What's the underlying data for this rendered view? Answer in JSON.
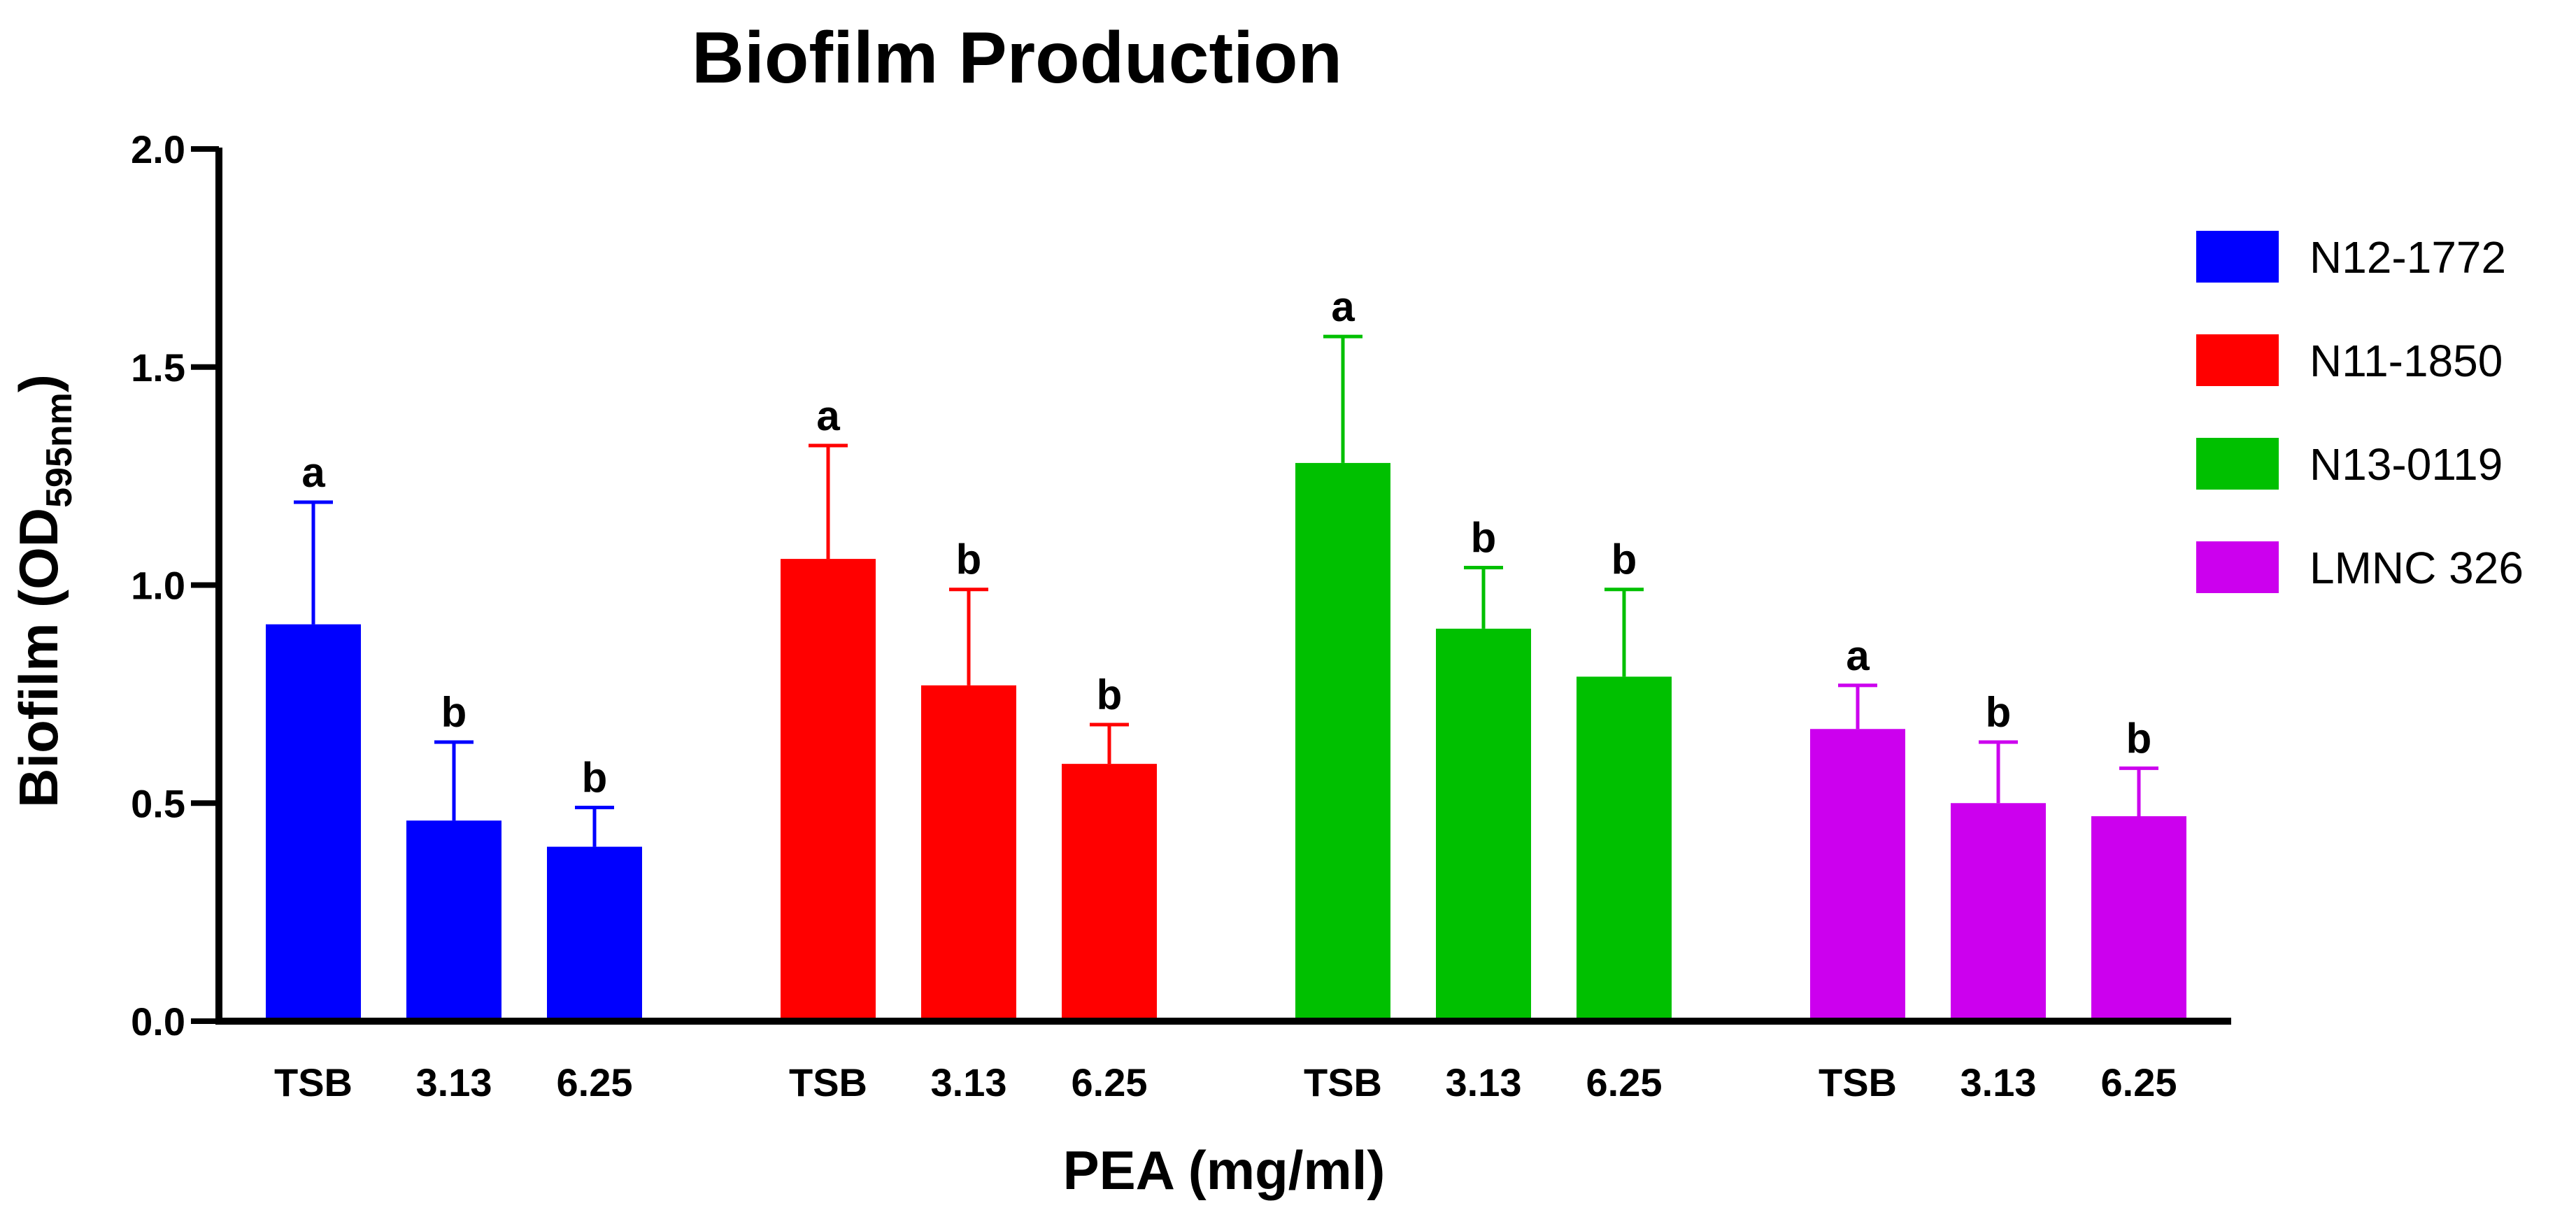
{
  "chart_data": {
    "type": "bar",
    "title": "Biofilm Production",
    "xlabel": "PEA (mg/ml)",
    "ylabel": {
      "main": "Biofilm (OD",
      "subscript": "595nm",
      "close": ")"
    },
    "ylim": [
      0,
      2.0
    ],
    "yticks": [
      "0.0",
      "0.5",
      "1.0",
      "1.5",
      "2.0"
    ],
    "categories": [
      "TSB",
      "3.13",
      "6.25"
    ],
    "legend_position": "right",
    "grid": false,
    "series": [
      {
        "name": "N12-1772",
        "color": "#0000ff",
        "values": [
          0.91,
          0.46,
          0.4
        ],
        "errors": [
          0.28,
          0.18,
          0.09
        ],
        "significance": [
          "a",
          "b",
          "b"
        ]
      },
      {
        "name": "N11-1850",
        "color": "#ff0000",
        "values": [
          1.06,
          0.77,
          0.59
        ],
        "errors": [
          0.26,
          0.22,
          0.09
        ],
        "significance": [
          "a",
          "b",
          "b"
        ]
      },
      {
        "name": "N13-0119",
        "color": "#00c000",
        "values": [
          1.28,
          0.9,
          0.79
        ],
        "errors": [
          0.29,
          0.14,
          0.2
        ],
        "significance": [
          "a",
          "b",
          "b"
        ]
      },
      {
        "name": "LMNC 326",
        "color": "#cc00ee",
        "values": [
          0.67,
          0.5,
          0.47
        ],
        "errors": [
          0.1,
          0.14,
          0.11
        ],
        "significance": [
          "a",
          "b",
          "b"
        ]
      }
    ]
  }
}
